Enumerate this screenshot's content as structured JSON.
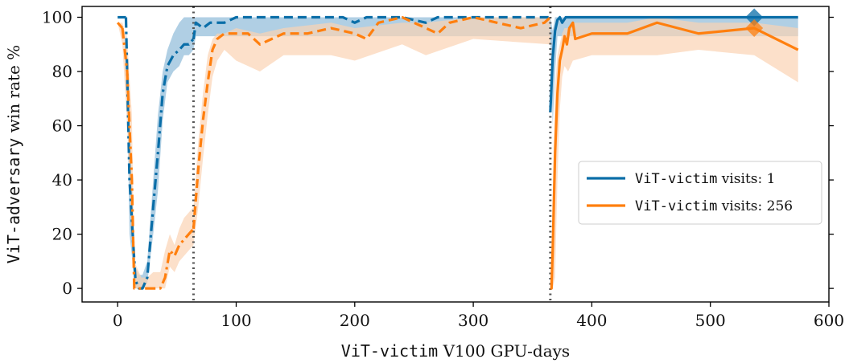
{
  "chart_data": {
    "type": "line",
    "xlabel": {
      "mono": "ViT-victim",
      "rest": " V100 GPU-days"
    },
    "ylabel": {
      "mono": "ViT-adversary",
      "rest": " win rate %"
    },
    "xlim": [
      -30,
      600
    ],
    "ylim": [
      -5,
      104
    ],
    "xticks": [
      0,
      100,
      200,
      300,
      400,
      500,
      600
    ],
    "yticks": [
      0,
      20,
      40,
      60,
      80,
      100
    ],
    "grid": false,
    "legend": {
      "placement": "center-right",
      "entries": [
        {
          "mono": "ViT-victim",
          "rest": " visits: 1",
          "color": "#0a6ea8"
        },
        {
          "mono": "ViT-victim",
          "rest": " visits: 256",
          "color": "#ff7f0e"
        }
      ]
    },
    "vlines": [
      64,
      365
    ],
    "markers": [
      {
        "series": "visits_1",
        "x": 537,
        "y": 100
      },
      {
        "series": "visits_256",
        "x": 537,
        "y": 96
      }
    ],
    "series": [
      {
        "key": "visits_1",
        "color": "#0a6ea8",
        "band_color": "#8fbbd9",
        "segments": [
          {
            "style": "solid",
            "x": [
              0,
              7
            ],
            "y": [
              100,
              100
            ]
          },
          {
            "style": "dashdot",
            "x": [
              7,
              10,
              15,
              18,
              21,
              25,
              30,
              34,
              38,
              42,
              47,
              52,
              56,
              60,
              64
            ],
            "y": [
              100,
              40,
              3,
              0,
              0,
              4,
              30,
              50,
              72,
              82,
              86,
              88,
              90,
              90,
              92
            ]
          },
          {
            "style": "dashed",
            "x": [
              64,
              66,
              72,
              78,
              84,
              90,
              100,
              110,
              130,
              150,
              170,
              180,
              190,
              200,
              210,
              220,
              240,
              260,
              270,
              280,
              300,
              320,
              340,
              365
            ],
            "y": [
              92,
              98,
              96,
              98,
              98,
              98,
              100,
              100,
              100,
              100,
              100,
              100,
              100,
              98,
              100,
              100,
              100,
              98,
              100,
              100,
              100,
              100,
              100,
              100
            ]
          },
          {
            "style": "solid",
            "x": [
              365,
              367,
              369,
              371,
              373,
              375,
              378,
              382,
              400,
              450,
              500,
              537,
              574
            ],
            "y": [
              65,
              85,
              95,
              99,
              100,
              98,
              100,
              100,
              100,
              100,
              100,
              100,
              100
            ]
          }
        ],
        "band": {
          "x": [
            0,
            7,
            10,
            15,
            18,
            21,
            25,
            30,
            34,
            38,
            42,
            47,
            52,
            56,
            60,
            64,
            66,
            72,
            78,
            84,
            90,
            100,
            130,
            200,
            260,
            300,
            365,
            367,
            369,
            371,
            373,
            375,
            378,
            382,
            400,
            450,
            500,
            537,
            574
          ],
          "lower": [
            100,
            100,
            20,
            0,
            0,
            0,
            2,
            20,
            36,
            62,
            76,
            80,
            82,
            86,
            86,
            88,
            93,
            93,
            93,
            93,
            93,
            93,
            93,
            93,
            93,
            93,
            93,
            60,
            80,
            93,
            93,
            93,
            93,
            93,
            93,
            93,
            93,
            93,
            93
          ],
          "upper": [
            100,
            100,
            60,
            8,
            5,
            5,
            10,
            40,
            64,
            80,
            88,
            94,
            98,
            100,
            100,
            100,
            100,
            100,
            100,
            100,
            100,
            100,
            100,
            100,
            100,
            100,
            100,
            95,
            100,
            100,
            100,
            100,
            100,
            100,
            100,
            100,
            100,
            100,
            100
          ]
        }
      },
      {
        "key": "visits_256",
        "color": "#ff7f0e",
        "band_color": "#fbd3b3",
        "segments": [
          {
            "style": "solid",
            "x": [
              0,
              4
            ],
            "y": [
              98,
              96
            ]
          },
          {
            "style": "dashdot",
            "x": [
              4,
              8,
              12,
              14,
              20,
              25,
              30,
              36,
              40,
              44,
              48,
              52,
              56,
              60,
              64
            ],
            "y": [
              96,
              80,
              40,
              0,
              0,
              0,
              0,
              0,
              4,
              14,
              12,
              16,
              18,
              20,
              22
            ]
          },
          {
            "style": "dashed",
            "x": [
              64,
              68,
              72,
              76,
              80,
              84,
              90,
              100,
              110,
              120,
              130,
              140,
              160,
              180,
              200,
              210,
              220,
              240,
              260,
              270,
              280,
              300,
              320,
              340,
              360,
              365
            ],
            "y": [
              22,
              44,
              62,
              76,
              88,
              92,
              94,
              94,
              94,
              90,
              92,
              94,
              94,
              96,
              94,
              92,
              98,
              100,
              96,
              94,
              98,
              100,
              98,
              96,
              98,
              100
            ]
          },
          {
            "style": "solid",
            "x": [
              365,
              366,
              367,
              369,
              371,
              373,
              375,
              377,
              379,
              381,
              384,
              386,
              400,
              430,
              455,
              490,
              537,
              574
            ],
            "y": [
              0,
              0,
              14,
              50,
              72,
              84,
              88,
              93,
              90,
              96,
              98,
              92,
              94,
              94,
              98,
              94,
              96,
              88
            ]
          }
        ],
        "band": {
          "x": [
            0,
            4,
            8,
            12,
            14,
            20,
            25,
            30,
            36,
            40,
            44,
            48,
            52,
            56,
            60,
            64,
            68,
            72,
            76,
            80,
            84,
            90,
            100,
            120,
            140,
            180,
            200,
            240,
            260,
            300,
            365,
            366,
            367,
            369,
            371,
            373,
            375,
            377,
            380,
            384,
            400,
            430,
            455,
            490,
            537,
            574
          ],
          "lower": [
            98,
            90,
            60,
            20,
            0,
            0,
            0,
            0,
            0,
            0,
            8,
            6,
            10,
            12,
            14,
            16,
            30,
            48,
            64,
            78,
            84,
            88,
            84,
            80,
            86,
            86,
            84,
            90,
            86,
            92,
            90,
            0,
            0,
            4,
            40,
            66,
            78,
            82,
            80,
            84,
            86,
            86,
            86,
            88,
            86,
            76
          ],
          "upper": [
            98,
            98,
            92,
            64,
            10,
            4,
            4,
            6,
            6,
            14,
            20,
            16,
            22,
            26,
            28,
            30,
            54,
            72,
            86,
            92,
            94,
            94,
            96,
            94,
            96,
            98,
            96,
            98,
            98,
            100,
            100,
            0,
            30,
            74,
            86,
            90,
            94,
            96,
            96,
            98,
            98,
            98,
            100,
            98,
            98,
            96
          ]
        }
      }
    ]
  }
}
